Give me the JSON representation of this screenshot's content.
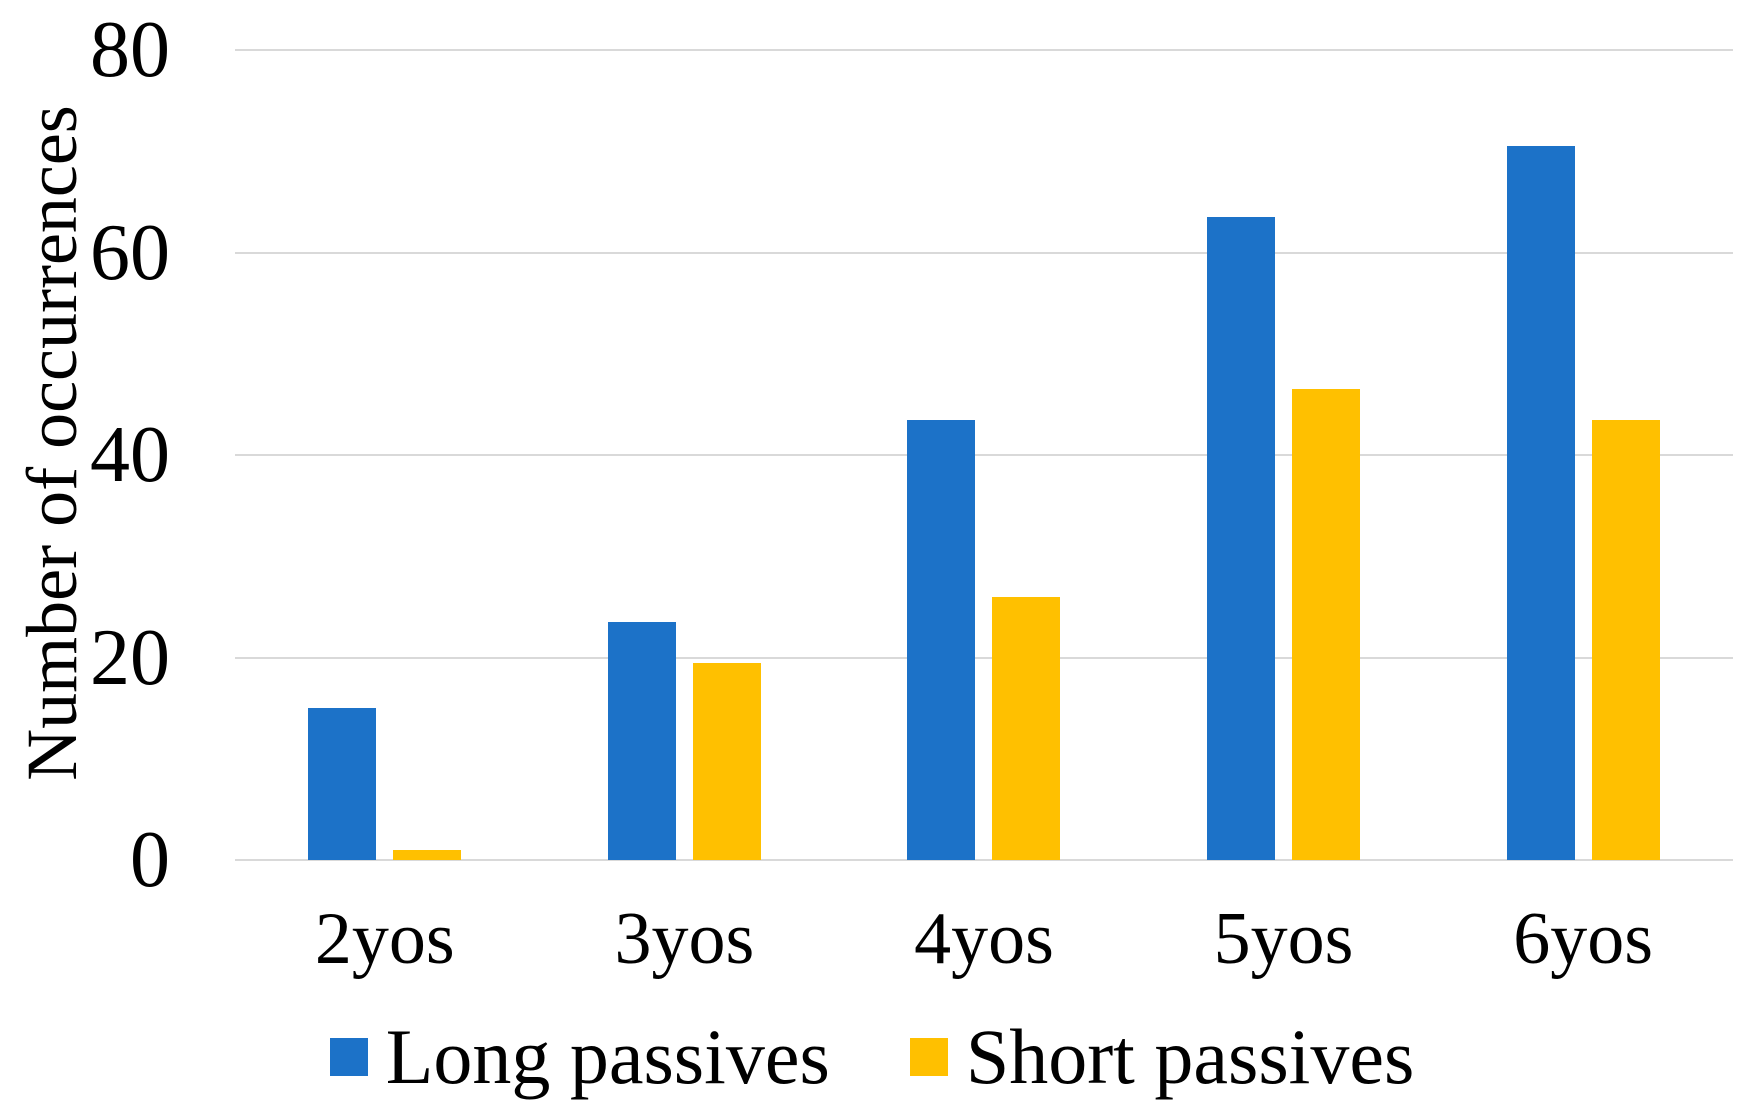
{
  "chart_data": {
    "type": "bar",
    "title": "",
    "categories": [
      "2yos",
      "3yos",
      "4yos",
      "5yos",
      "6yos"
    ],
    "series": [
      {
        "name": "Long passives",
        "color": "#1c72c8",
        "values": [
          15,
          23.5,
          43.5,
          63.5,
          70.5
        ]
      },
      {
        "name": "Short passives",
        "color": "#ffc000",
        "values": [
          1,
          19.5,
          26,
          46.5,
          43.5
        ]
      }
    ],
    "xlabel": "",
    "ylabel": "Number of occurrences",
    "ylim": [
      0,
      80
    ],
    "yticks": [
      0,
      20,
      40,
      60,
      80
    ],
    "grid": "horizontal",
    "gridline_color": "#d9d9d9",
    "legend_position": "bottom",
    "background": "#ffffff",
    "text_color": "#000000"
  }
}
